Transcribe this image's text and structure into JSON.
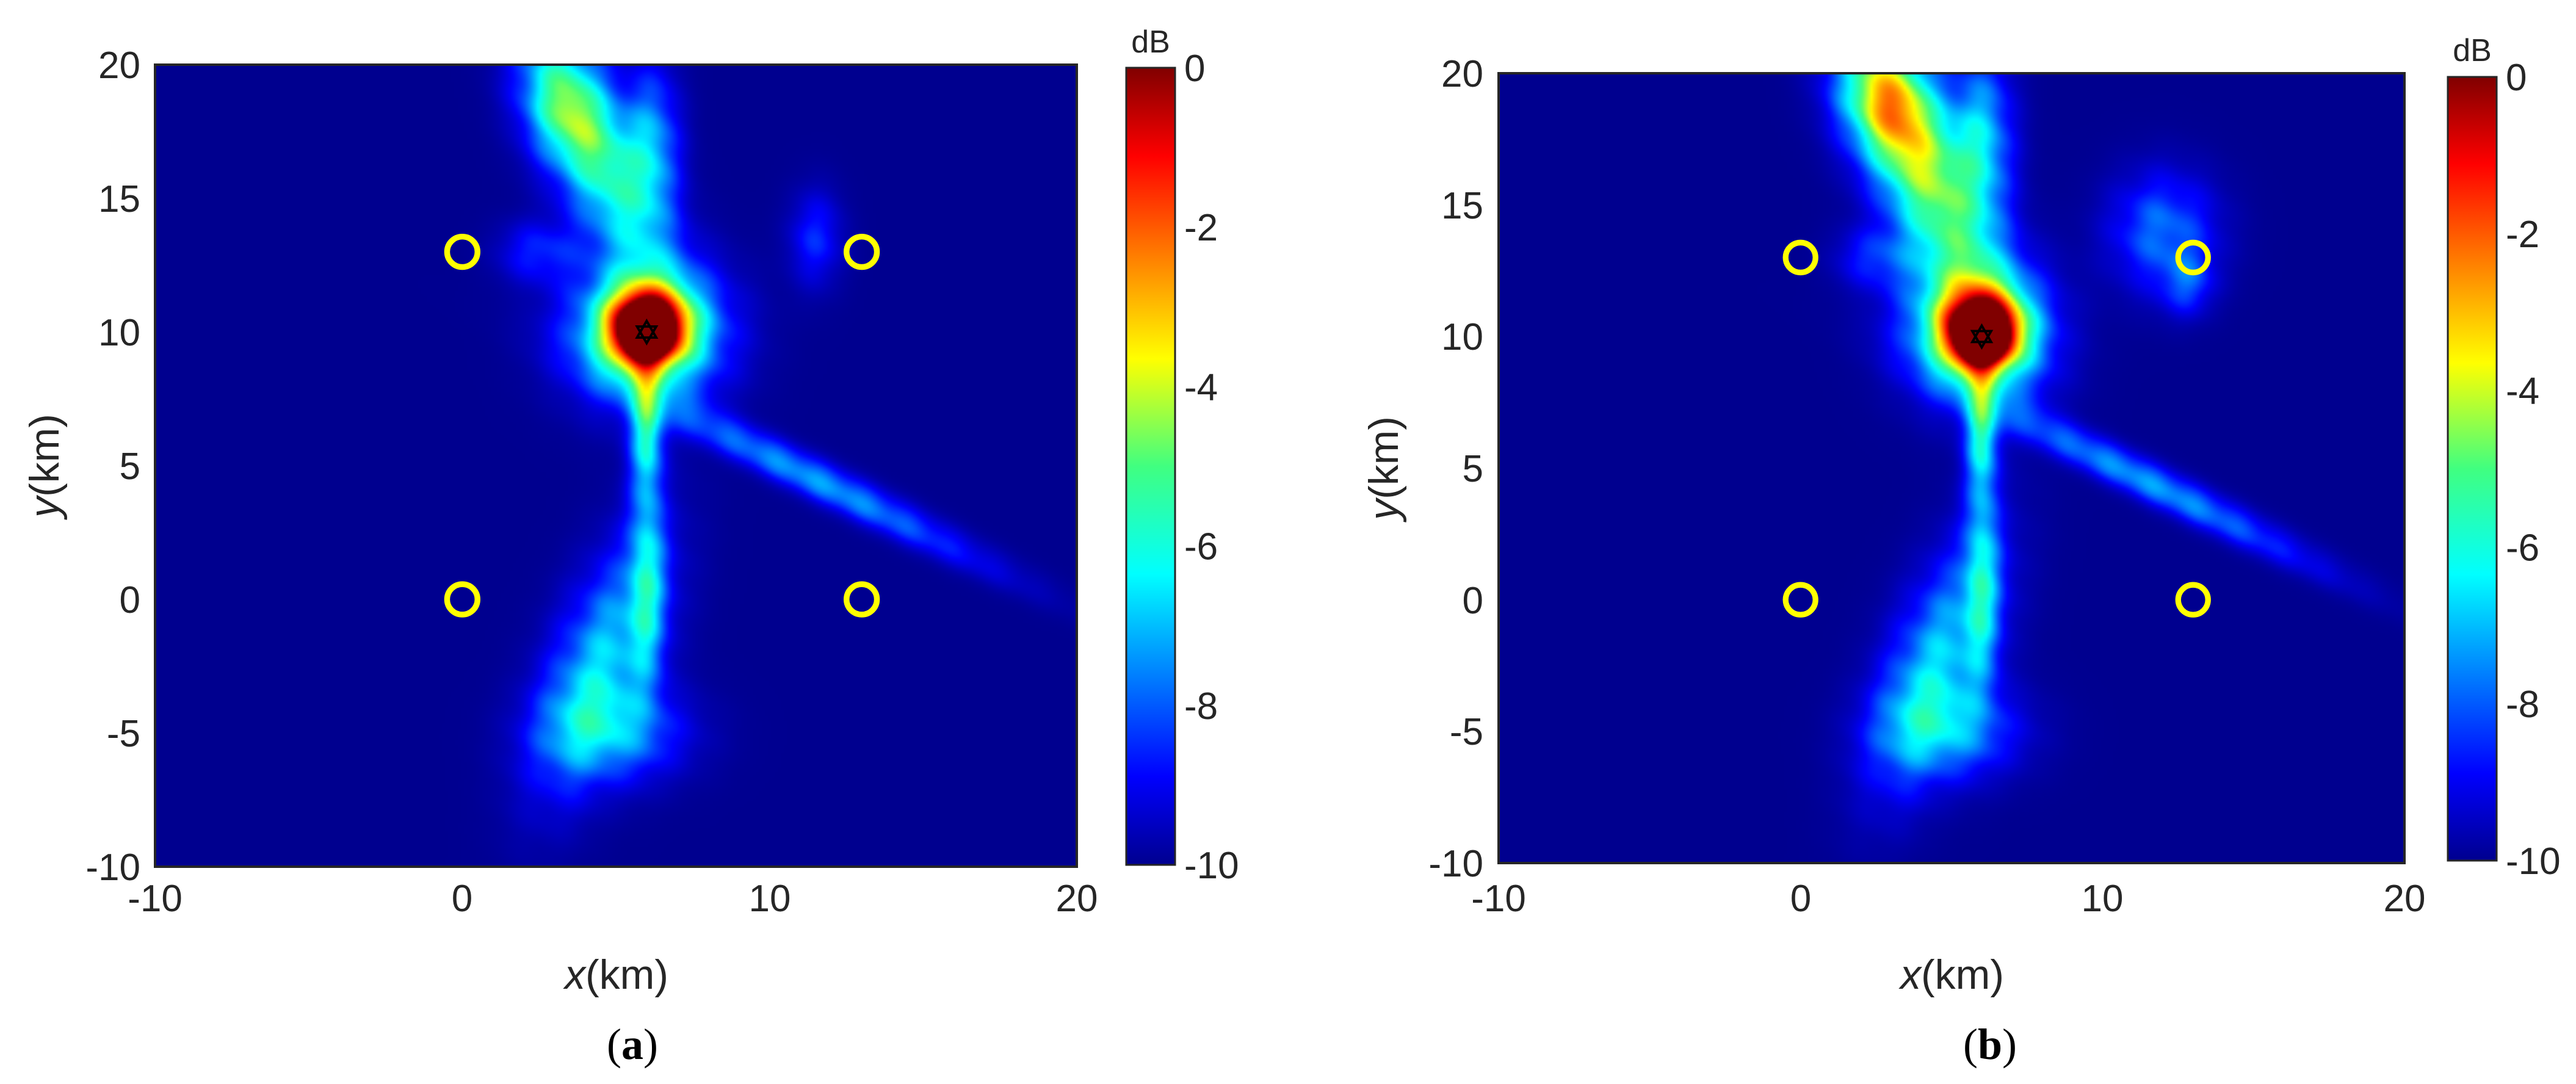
{
  "chart_data": [
    {
      "type": "heatmap",
      "panel_label": "a",
      "xlabel_italic": "x",
      "xlabel_unit": "(km)",
      "ylabel_italic": "y",
      "ylabel_unit": "(km)",
      "xlim": [
        -10,
        20
      ],
      "ylim": [
        -10,
        20
      ],
      "xticks": [
        -10,
        0,
        10,
        20
      ],
      "yticks": [
        -10,
        -5,
        0,
        5,
        10,
        15,
        20
      ],
      "colorbar": {
        "label": "dB",
        "clim": [
          -10,
          0
        ],
        "ticks": [
          0,
          -2,
          -4,
          -6,
          -8,
          -10
        ],
        "colormap": "jet"
      },
      "background_color": "#00008f",
      "receivers": {
        "color": "#ffff00",
        "points": [
          [
            0,
            13
          ],
          [
            13,
            13
          ],
          [
            0,
            0
          ],
          [
            13,
            0
          ]
        ]
      },
      "source": {
        "x": 6,
        "y": 10,
        "marker": "hexagram"
      },
      "intensity_blobs": [
        {
          "x": 6.0,
          "y": 10.0,
          "sx": 0.45,
          "sy": 0.55,
          "rot": 0,
          "amp": 10.0
        },
        {
          "x": 6.0,
          "y": 10.2,
          "sx": 0.9,
          "sy": 1.0,
          "rot": 0,
          "amp": 8.0
        },
        {
          "x": 6.0,
          "y": 10.0,
          "sx": 1.6,
          "sy": 1.7,
          "rot": 0,
          "amp": 5.5
        },
        {
          "x": 4.5,
          "y": 16.5,
          "sx": 1.0,
          "sy": 3.2,
          "rot": 0.35,
          "amp": 4.2
        },
        {
          "x": 3.2,
          "y": 18.5,
          "sx": 0.9,
          "sy": 1.6,
          "rot": 0.2,
          "amp": 2.8
        },
        {
          "x": 6.2,
          "y": 17.0,
          "sx": 0.6,
          "sy": 2.0,
          "rot": 0,
          "amp": 2.5
        },
        {
          "x": 6.0,
          "y": 6.5,
          "sx": 0.35,
          "sy": 1.6,
          "rot": 0,
          "amp": 3.5
        },
        {
          "x": 6.0,
          "y": 1.0,
          "sx": 0.4,
          "sy": 3.0,
          "rot": 0,
          "amp": 2.8
        },
        {
          "x": 11.5,
          "y": 4.5,
          "sx": 4.2,
          "sy": 0.45,
          "rot": -0.52,
          "amp": 2.8
        },
        {
          "x": 4.5,
          "y": -2.5,
          "sx": 1.1,
          "sy": 3.2,
          "rot": -0.3,
          "amp": 3.2
        },
        {
          "x": 5.0,
          "y": -5.0,
          "sx": 1.6,
          "sy": 1.2,
          "rot": 0,
          "amp": 2.2
        },
        {
          "x": 11.5,
          "y": 13.5,
          "sx": 0.6,
          "sy": 1.2,
          "rot": 0,
          "amp": 1.4
        },
        {
          "x": 2.5,
          "y": 13.0,
          "sx": 0.9,
          "sy": 0.8,
          "rot": 0,
          "amp": 1.4
        }
      ]
    },
    {
      "type": "heatmap",
      "panel_label": "b",
      "xlabel_italic": "x",
      "xlabel_unit": "(km)",
      "ylabel_italic": "y",
      "ylabel_unit": "(km)",
      "xlim": [
        -10,
        20
      ],
      "ylim": [
        -10,
        20
      ],
      "xticks": [
        -10,
        0,
        10,
        20
      ],
      "yticks": [
        -10,
        -5,
        0,
        5,
        10,
        15,
        20
      ],
      "colorbar": {
        "label": "dB",
        "clim": [
          -10,
          0
        ],
        "ticks": [
          0,
          -2,
          -4,
          -6,
          -8,
          -10
        ],
        "colormap": "jet"
      },
      "background_color": "#00008f",
      "receivers": {
        "color": "#ffff00",
        "points": [
          [
            0,
            13
          ],
          [
            13,
            13
          ],
          [
            0,
            0
          ],
          [
            13,
            0
          ]
        ]
      },
      "source": {
        "x": 6,
        "y": 10,
        "marker": "hexagram"
      },
      "intensity_blobs": [
        {
          "x": 6.0,
          "y": 10.0,
          "sx": 0.45,
          "sy": 0.55,
          "rot": 0,
          "amp": 10.0
        },
        {
          "x": 6.0,
          "y": 10.2,
          "sx": 0.9,
          "sy": 1.0,
          "rot": 0,
          "amp": 8.0
        },
        {
          "x": 5.8,
          "y": 10.3,
          "sx": 1.5,
          "sy": 1.8,
          "rot": 0.2,
          "amp": 5.5
        },
        {
          "x": 4.0,
          "y": 16.5,
          "sx": 1.1,
          "sy": 3.5,
          "rot": 0.35,
          "amp": 5.5
        },
        {
          "x": 2.8,
          "y": 19.0,
          "sx": 1.0,
          "sy": 1.5,
          "rot": 0.2,
          "amp": 3.8
        },
        {
          "x": 6.0,
          "y": 17.5,
          "sx": 0.7,
          "sy": 2.2,
          "rot": 0,
          "amp": 3.0
        },
        {
          "x": 6.0,
          "y": 6.5,
          "sx": 0.35,
          "sy": 1.6,
          "rot": 0,
          "amp": 3.5
        },
        {
          "x": 6.0,
          "y": 1.0,
          "sx": 0.4,
          "sy": 3.0,
          "rot": 0,
          "amp": 2.8
        },
        {
          "x": 11.5,
          "y": 4.5,
          "sx": 4.2,
          "sy": 0.45,
          "rot": -0.52,
          "amp": 2.8
        },
        {
          "x": 4.5,
          "y": -2.5,
          "sx": 1.1,
          "sy": 3.2,
          "rot": -0.3,
          "amp": 3.2
        },
        {
          "x": 5.0,
          "y": -5.0,
          "sx": 1.6,
          "sy": 1.2,
          "rot": 0,
          "amp": 2.2
        },
        {
          "x": 12.0,
          "y": 14.0,
          "sx": 1.2,
          "sy": 1.5,
          "rot": 0,
          "amp": 2.2
        },
        {
          "x": 12.8,
          "y": 12.0,
          "sx": 0.6,
          "sy": 0.8,
          "rot": 0,
          "amp": 1.5
        },
        {
          "x": 2.5,
          "y": 13.0,
          "sx": 0.9,
          "sy": 0.8,
          "rot": 0,
          "amp": 1.4
        }
      ]
    }
  ]
}
